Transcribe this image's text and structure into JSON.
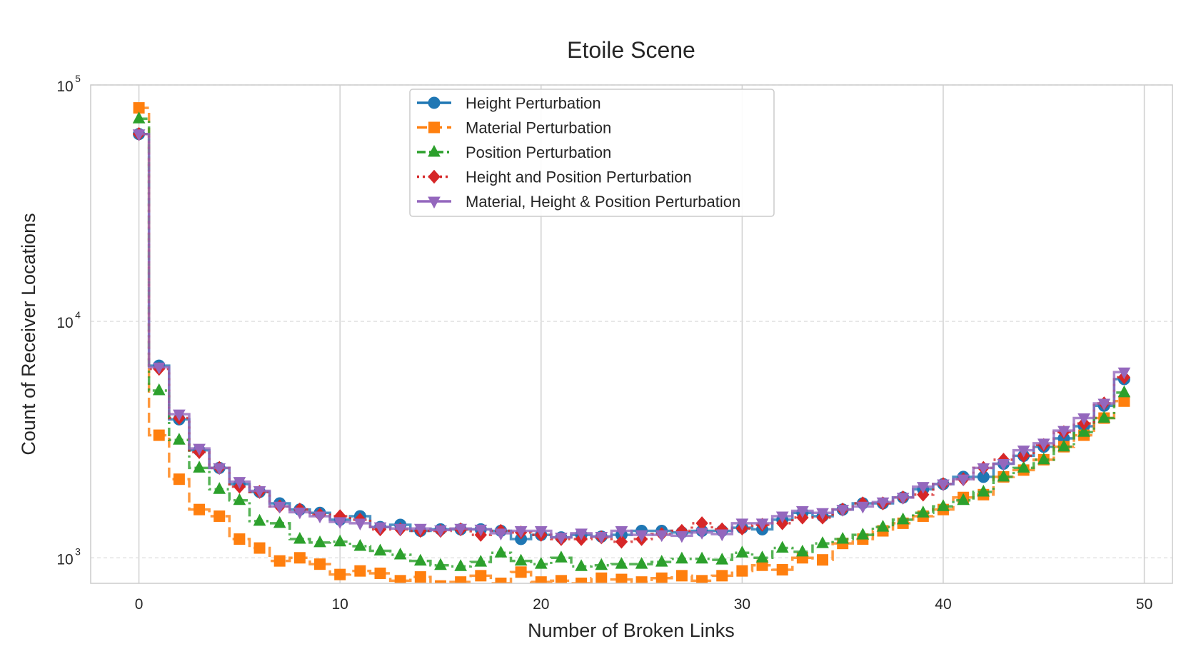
{
  "chart_data": {
    "type": "line",
    "title": "Etoile Scene",
    "xlabel": "Number of Broken Links",
    "ylabel": "Count of Receiver Locations",
    "xlim": [
      -2.4,
      51.4
    ],
    "ylim": [
      780,
      100000
    ],
    "yscale": "log",
    "xticks": [
      0,
      10,
      20,
      30,
      40,
      50
    ],
    "xtick_labels": [
      "0",
      "10",
      "20",
      "30",
      "40",
      "50"
    ],
    "yticks": [
      1000,
      10000,
      100000
    ],
    "ytick_labels": [
      {
        "base": "10",
        "exp": "3"
      },
      {
        "base": "10",
        "exp": "4"
      },
      {
        "base": "10",
        "exp": "5"
      }
    ],
    "grid": true,
    "legend_position": "upper-center",
    "drawstyle": "steps-mid",
    "x": [
      0,
      1,
      2,
      3,
      4,
      5,
      6,
      7,
      8,
      9,
      10,
      11,
      12,
      13,
      14,
      15,
      16,
      17,
      18,
      19,
      20,
      21,
      22,
      23,
      24,
      25,
      26,
      27,
      28,
      29,
      30,
      31,
      32,
      33,
      34,
      35,
      36,
      37,
      38,
      39,
      40,
      41,
      42,
      43,
      44,
      45,
      46,
      47,
      48,
      49
    ],
    "series": [
      {
        "name": "Height Perturbation",
        "color": "#1f77b4",
        "linestyle": "solid",
        "marker": "circle",
        "values": [
          62000,
          6500,
          3850,
          2850,
          2400,
          2050,
          1900,
          1700,
          1600,
          1550,
          1450,
          1500,
          1350,
          1380,
          1300,
          1320,
          1320,
          1320,
          1300,
          1200,
          1250,
          1220,
          1250,
          1230,
          1250,
          1300,
          1300,
          1280,
          1300,
          1300,
          1340,
          1320,
          1450,
          1550,
          1500,
          1600,
          1700,
          1700,
          1800,
          1950,
          2050,
          2200,
          2200,
          2500,
          2700,
          2950,
          3200,
          3600,
          4400,
          5700
        ]
      },
      {
        "name": "Material Perturbation",
        "color": "#ff7f0e",
        "linestyle": "dashed",
        "marker": "square",
        "values": [
          80000,
          3300,
          2150,
          1600,
          1500,
          1200,
          1100,
          970,
          1000,
          940,
          850,
          880,
          860,
          800,
          830,
          760,
          790,
          840,
          780,
          870,
          790,
          800,
          780,
          820,
          810,
          790,
          820,
          840,
          800,
          840,
          880,
          930,
          890,
          1000,
          980,
          1150,
          1200,
          1300,
          1400,
          1500,
          1600,
          1800,
          1850,
          2200,
          2350,
          2600,
          2950,
          3300,
          3900,
          4600
        ]
      },
      {
        "name": "Position Perturbation",
        "color": "#2ca02c",
        "linestyle": "dashdot",
        "marker": "triangle-up",
        "values": [
          72000,
          5100,
          3150,
          2400,
          1950,
          1750,
          1430,
          1400,
          1200,
          1160,
          1170,
          1120,
          1070,
          1030,
          970,
          930,
          920,
          960,
          1050,
          970,
          940,
          1000,
          920,
          930,
          940,
          940,
          960,
          990,
          990,
          980,
          1050,
          1000,
          1100,
          1060,
          1150,
          1200,
          1250,
          1350,
          1450,
          1550,
          1650,
          1750,
          1900,
          2200,
          2400,
          2600,
          2950,
          3400,
          3900,
          5000
        ]
      },
      {
        "name": "Height and Position Perturbation",
        "color": "#d62728",
        "linestyle": "dotted",
        "marker": "diamond",
        "values": [
          62000,
          6300,
          3900,
          2800,
          2400,
          2000,
          1900,
          1650,
          1600,
          1520,
          1500,
          1450,
          1320,
          1320,
          1300,
          1300,
          1320,
          1250,
          1300,
          1280,
          1250,
          1200,
          1200,
          1220,
          1170,
          1200,
          1260,
          1300,
          1400,
          1320,
          1330,
          1380,
          1400,
          1480,
          1480,
          1600,
          1700,
          1700,
          1800,
          1850,
          2050,
          2150,
          2400,
          2600,
          2700,
          3000,
          3400,
          3700,
          4500,
          5800
        ]
      },
      {
        "name": "Material, Height & Position Perturbation",
        "color": "#9467bd",
        "linestyle": "solid",
        "marker": "triangle-down",
        "values": [
          62000,
          6400,
          4050,
          2900,
          2400,
          2100,
          1920,
          1650,
          1560,
          1500,
          1420,
          1400,
          1350,
          1330,
          1330,
          1310,
          1330,
          1320,
          1270,
          1300,
          1300,
          1220,
          1270,
          1230,
          1300,
          1250,
          1250,
          1240,
          1280,
          1260,
          1400,
          1400,
          1500,
          1580,
          1550,
          1600,
          1650,
          1720,
          1800,
          2000,
          2050,
          2150,
          2400,
          2500,
          2850,
          3050,
          3450,
          3900,
          4500,
          6100
        ]
      }
    ]
  }
}
